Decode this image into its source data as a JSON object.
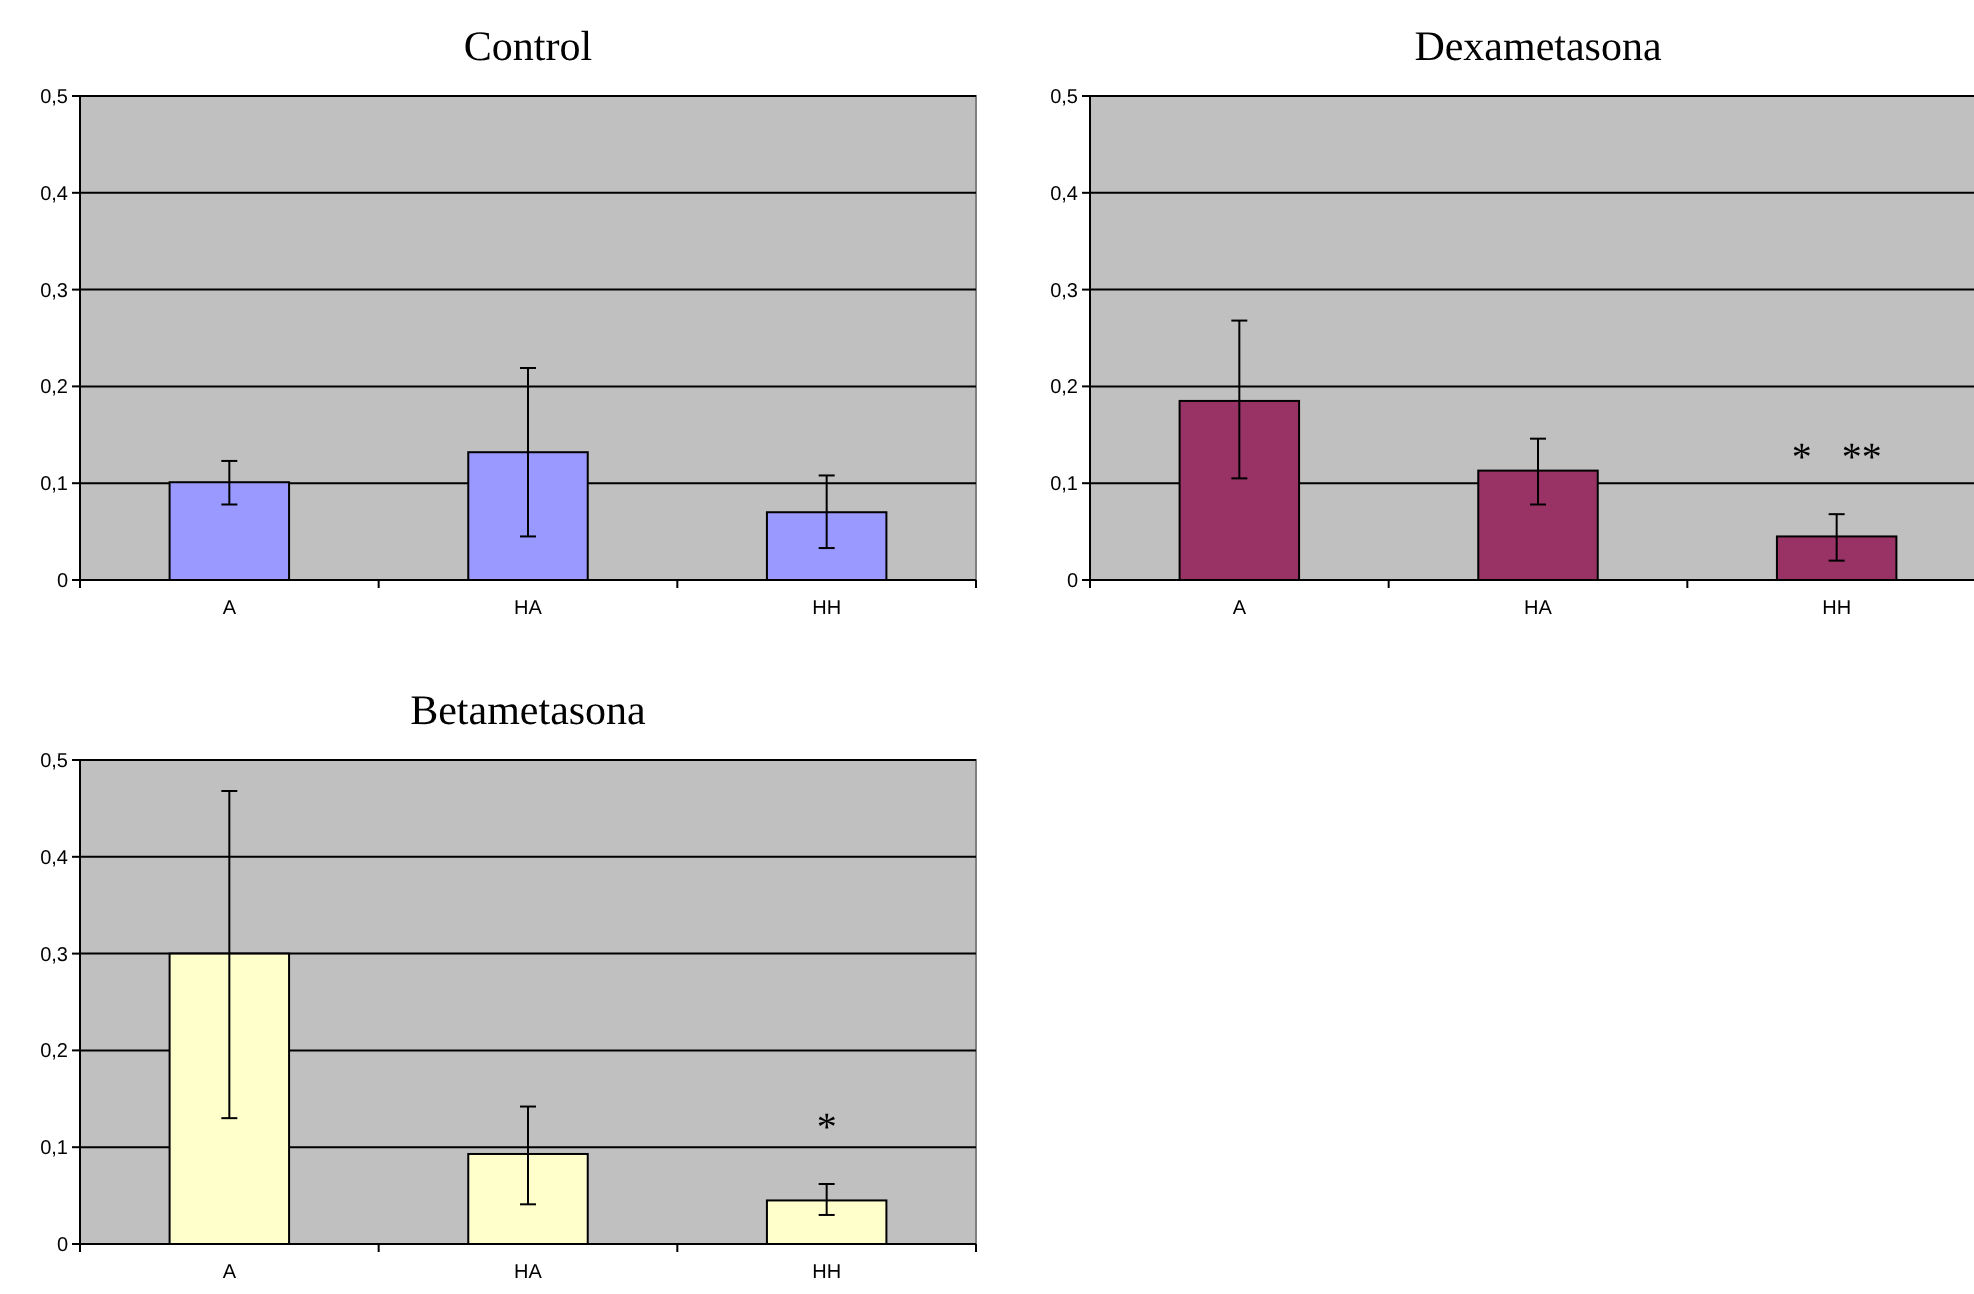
{
  "chart_data": [
    {
      "type": "bar",
      "title": "Control",
      "categories": [
        "A",
        "HA",
        "HH"
      ],
      "values": [
        0.101,
        0.132,
        0.07
      ],
      "color": "#9999ff",
      "errors": [
        [
          0.078,
          0.123
        ],
        [
          0.045,
          0.219
        ],
        [
          0.033,
          0.108
        ]
      ],
      "ylim": [
        0,
        0.5
      ],
      "yticks": [
        {
          "value": 0,
          "label": "0"
        },
        {
          "value": 0.1,
          "label": "0,1"
        },
        {
          "value": 0.2,
          "label": "0,2"
        },
        {
          "value": 0.3,
          "label": "0,3"
        },
        {
          "value": 0.4,
          "label": "0,4"
        },
        {
          "value": 0.5,
          "label": "0,5"
        }
      ],
      "grid": "y"
    },
    {
      "type": "bar",
      "title": "Dexametasona",
      "categories": [
        "A",
        "HA",
        "HH"
      ],
      "values": [
        0.185,
        0.113,
        0.045
      ],
      "color": "#993366",
      "errors": [
        [
          0.105,
          0.268
        ],
        [
          0.078,
          0.146
        ],
        [
          0.02,
          0.068
        ]
      ],
      "ylim": [
        0,
        0.5
      ],
      "yticks": [
        {
          "value": 0,
          "label": "0"
        },
        {
          "value": 0.1,
          "label": "0,1"
        },
        {
          "value": 0.2,
          "label": "0,2"
        },
        {
          "value": 0.3,
          "label": "0,3"
        },
        {
          "value": 0.4,
          "label": "0,4"
        },
        {
          "value": 0.5,
          "label": "0,5"
        }
      ],
      "grid": "y",
      "annotations": [
        "*   **"
      ]
    },
    {
      "type": "bar",
      "title": "Betametasona",
      "categories": [
        "A",
        "HA",
        "HH"
      ],
      "values": [
        0.3,
        0.093,
        0.045
      ],
      "color": "#ffffcc",
      "errors": [
        [
          0.13,
          0.468
        ],
        [
          0.041,
          0.142
        ],
        [
          0.03,
          0.062
        ]
      ],
      "ylim": [
        0,
        0.5
      ],
      "yticks": [
        {
          "value": 0,
          "label": "0"
        },
        {
          "value": 0.1,
          "label": "0,1"
        },
        {
          "value": 0.2,
          "label": "0,2"
        },
        {
          "value": 0.3,
          "label": "0,3"
        },
        {
          "value": 0.4,
          "label": "0,4"
        },
        {
          "value": 0.5,
          "label": "0,5"
        }
      ],
      "grid": "y",
      "annotations": [
        "*"
      ]
    }
  ]
}
